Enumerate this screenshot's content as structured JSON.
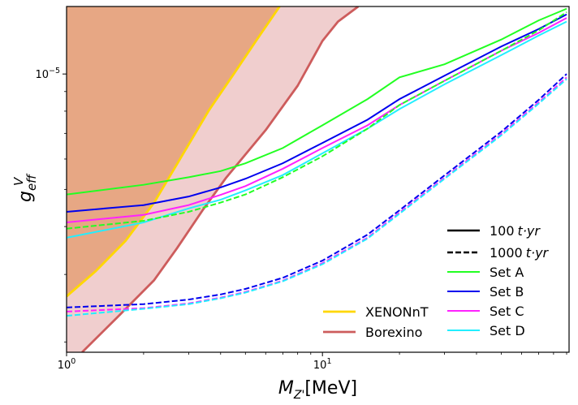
{
  "chart_data": {
    "type": "line",
    "title": "",
    "xlabel": "M_{Z'}[MeV]",
    "ylabel": "g_eff^V",
    "xscale": "log",
    "yscale": "log",
    "xlim": [
      1.0,
      92.0
    ],
    "ylim": [
      1.88e-06,
      1.5e-05
    ],
    "xticks": [
      {
        "value": 1,
        "label": "10^0"
      },
      {
        "value": 10,
        "label": "10^1"
      }
    ],
    "yticks": [
      {
        "value": 1e-05,
        "label": "10^-5"
      }
    ],
    "bands": [
      {
        "name": "XENONnT",
        "color": "#FFD700",
        "fill": "#EDAF6A",
        "opacity": 0.7,
        "x": [
          1.0,
          1.3,
          1.7,
          2.2,
          2.8,
          3.6,
          4.5,
          5.5,
          6.8
        ],
        "y": [
          2.63e-06,
          3.06e-06,
          3.67e-06,
          4.62e-06,
          6.06e-06,
          8.04e-06,
          1e-05,
          1.22e-05,
          1.5e-05
        ]
      },
      {
        "name": "Borexino",
        "color": "#CD5C5C",
        "fill": "#CD5C5C",
        "opacity": 0.3,
        "x": [
          1.15,
          1.6,
          2.2,
          2.7,
          3.4,
          4.2,
          6.0,
          8.0,
          10.0,
          11.5,
          13.8
        ],
        "y": [
          1.88e-06,
          2.34e-06,
          2.9e-06,
          3.51e-06,
          4.41e-06,
          5.36e-06,
          7.14e-06,
          9.32e-06,
          1.22e-05,
          1.37e-05,
          1.5e-05
        ]
      }
    ],
    "series": [
      {
        "name": "Set A 100 t·yr",
        "set": "Set A",
        "exposure": "100 t·yr",
        "color": "#22FF22",
        "dash": "solid",
        "x": [
          1,
          2,
          3,
          4,
          5,
          7,
          10,
          15,
          20,
          30,
          50,
          70,
          90
        ],
        "y": [
          4.85e-06,
          5.14e-06,
          5.38e-06,
          5.58e-06,
          5.85e-06,
          6.41e-06,
          7.35e-06,
          8.6e-06,
          9.8e-06,
          1.06e-05,
          1.23e-05,
          1.38e-05,
          1.48e-05
        ]
      },
      {
        "name": "Set B 100 t·yr",
        "set": "Set B",
        "exposure": "100 t·yr",
        "color": "#0000EE",
        "dash": "solid",
        "x": [
          1,
          2,
          3,
          4,
          5,
          7,
          10,
          15,
          20,
          30,
          50,
          70,
          90
        ],
        "y": [
          4.37e-06,
          4.55e-06,
          4.79e-06,
          5.06e-06,
          5.33e-06,
          5.85e-06,
          6.61e-06,
          7.6e-06,
          8.6e-06,
          9.9e-06,
          1.18e-05,
          1.31e-05,
          1.43e-05
        ]
      },
      {
        "name": "Set C 100 t·yr",
        "set": "Set C",
        "exposure": "100 t·yr",
        "color": "#FF22FF",
        "dash": "solid",
        "x": [
          1,
          2,
          3,
          4,
          5,
          7,
          10,
          15,
          20,
          30,
          50,
          70,
          90
        ],
        "y": [
          4.1e-06,
          4.29e-06,
          4.55e-06,
          4.84e-06,
          5.1e-06,
          5.66e-06,
          6.41e-06,
          7.35e-06,
          8.3e-06,
          9.6e-06,
          1.15e-05,
          1.28e-05,
          1.4e-05
        ]
      },
      {
        "name": "Set D 100 t·yr",
        "set": "Set D",
        "exposure": "100 t·yr",
        "color": "#22EEFF",
        "dash": "solid",
        "x": [
          1,
          2,
          3,
          4,
          5,
          7,
          10,
          15,
          20,
          30,
          50,
          70,
          90
        ],
        "y": [
          3.74e-06,
          4.1e-06,
          4.46e-06,
          4.7e-06,
          4.97e-06,
          5.45e-06,
          6.21e-06,
          7.2e-06,
          8.1e-06,
          9.4e-06,
          1.12e-05,
          1.26e-05,
          1.37e-05
        ]
      },
      {
        "name": "Set A 1000 t·yr",
        "set": "Set A",
        "exposure": "1000 t·yr",
        "color": "#22FF22",
        "dash": "dashed",
        "x": [
          1,
          2,
          3,
          4,
          5,
          7,
          10,
          15,
          20,
          30,
          50,
          70,
          90
        ],
        "y": [
          3.95e-06,
          4.14e-06,
          4.37e-06,
          4.62e-06,
          4.85e-06,
          5.38e-06,
          6.1e-06,
          7.2e-06,
          8.3e-06,
          9.6e-06,
          1.15e-05,
          1.3e-05,
          1.45e-05
        ]
      },
      {
        "name": "Set B 1000 t·yr",
        "set": "Set B",
        "exposure": "1000 t·yr",
        "color": "#0000EE",
        "dash": "dashed",
        "x": [
          1,
          2,
          3,
          4,
          5,
          7,
          10,
          15,
          20,
          30,
          50,
          70,
          90
        ],
        "y": [
          2.46e-06,
          2.51e-06,
          2.58e-06,
          2.66e-06,
          2.75e-06,
          2.94e-06,
          3.26e-06,
          3.81e-06,
          4.41e-06,
          5.44e-06,
          7.07e-06,
          8.56e-06,
          1e-05
        ]
      },
      {
        "name": "Set C 1000 t·yr",
        "set": "Set C",
        "exposure": "1000 t·yr",
        "color": "#FF22FF",
        "dash": "dashed",
        "x": [
          1,
          2,
          3,
          4,
          5,
          7,
          10,
          15,
          20,
          30,
          50,
          70,
          90
        ],
        "y": [
          2.4e-06,
          2.45e-06,
          2.52e-06,
          2.61e-06,
          2.7e-06,
          2.89e-06,
          3.21e-06,
          3.74e-06,
          4.35e-06,
          5.36e-06,
          6.97e-06,
          8.43e-06,
          9.8e-06
        ]
      },
      {
        "name": "Set D 1000 t·yr",
        "set": "Set D",
        "exposure": "1000 t·yr",
        "color": "#22EEFF",
        "dash": "dashed",
        "x": [
          1,
          2,
          3,
          4,
          5,
          7,
          10,
          15,
          20,
          30,
          50,
          70,
          90
        ],
        "y": [
          2.34e-06,
          2.44e-06,
          2.51e-06,
          2.6e-06,
          2.69e-06,
          2.88e-06,
          3.19e-06,
          3.72e-06,
          4.32e-06,
          5.33e-06,
          6.92e-06,
          8.37e-06,
          9.7e-06
        ]
      }
    ],
    "legend": {
      "placement": "bottom-right",
      "style_entries": [
        {
          "label": "100 t·yr",
          "color": "#000000",
          "dash": "solid"
        },
        {
          "label": "1000 t·yr",
          "color": "#000000",
          "dash": "dashed"
        }
      ],
      "set_entries": [
        {
          "label": "Set A",
          "color": "#22FF22"
        },
        {
          "label": "Set B",
          "color": "#0000EE"
        },
        {
          "label": "Set C",
          "color": "#FF22FF"
        },
        {
          "label": "Set D",
          "color": "#22EEFF"
        }
      ],
      "band_entries": [
        {
          "label": "XENONnT",
          "color": "#FFD700"
        },
        {
          "label": "Borexino",
          "color": "#CD5C5C"
        }
      ]
    }
  }
}
